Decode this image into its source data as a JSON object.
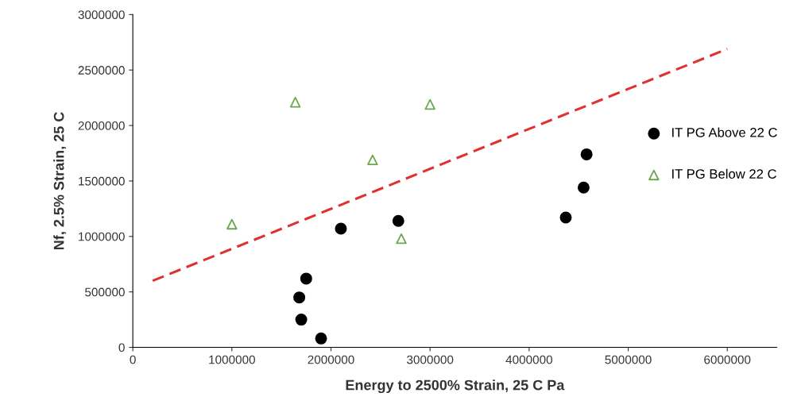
{
  "chart_data": {
    "type": "scatter",
    "xlabel": "Energy to 2500% Strain, 25 C Pa",
    "ylabel": "Nf, 2.5% Strain, 25 C",
    "xlim": [
      0,
      6500000
    ],
    "xticks": [
      0,
      1000000,
      2000000,
      3000000,
      4000000,
      5000000,
      6000000
    ],
    "ylim": [
      0,
      3000000
    ],
    "yticks": [
      0,
      500000,
      1000000,
      1500000,
      2000000,
      2500000,
      3000000
    ],
    "grid": false,
    "legend": "right",
    "series": [
      {
        "name": "IT PG Above 22 C",
        "color": "#000000",
        "marker": "circle",
        "x": [
          1900000,
          1700000,
          1680000,
          1750000,
          2100000,
          2680000,
          4370000,
          4550000,
          4580000
        ],
        "values": [
          80000,
          250000,
          450000,
          620000,
          1070000,
          1140000,
          1170000,
          1440000,
          1740000
        ]
      },
      {
        "name": "IT PG Below 22 C",
        "color": "#6aa84f",
        "marker": "triangle",
        "x": [
          1000000,
          1640000,
          2420000,
          3000000,
          2710000
        ],
        "values": [
          1110000,
          2210000,
          1690000,
          2190000,
          980000
        ]
      },
      {
        "type": "line",
        "color": "#e03030",
        "line_style": "dashed",
        "marker": "none",
        "x": [
          200000,
          6000000
        ],
        "values": [
          600000,
          2690000
        ]
      }
    ]
  }
}
